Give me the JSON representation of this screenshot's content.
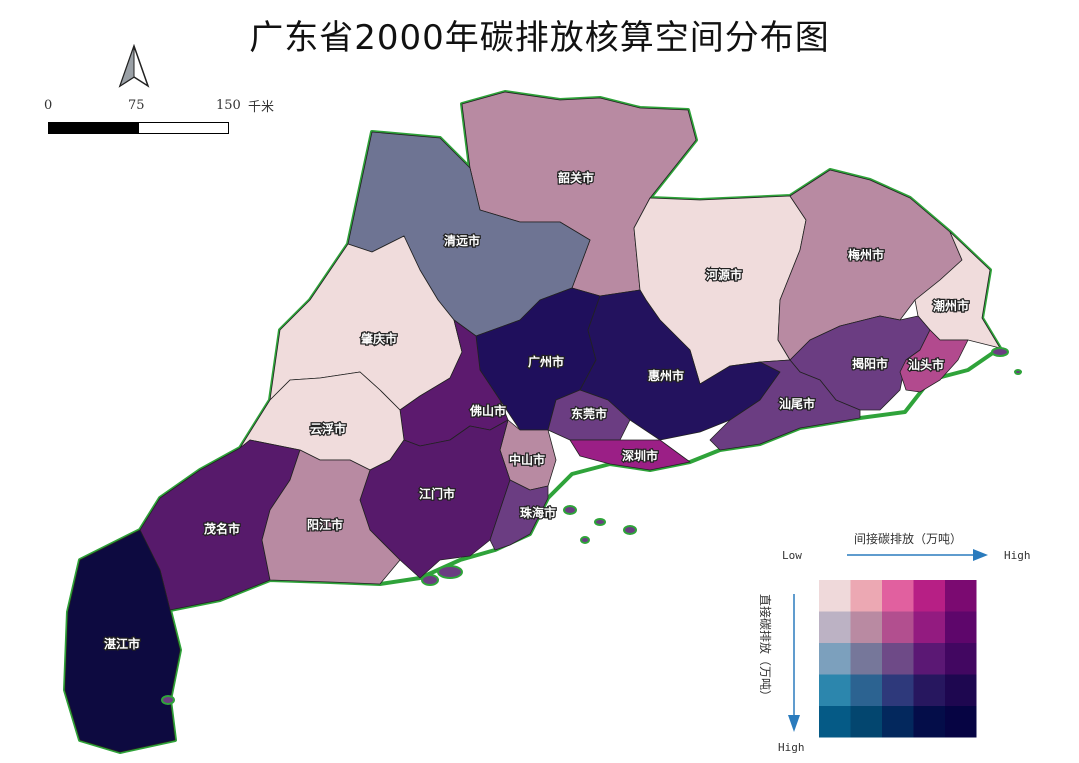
{
  "title": "广东省2000年碳排放核算空间分布图",
  "scale_bar": {
    "ticks": [
      "0",
      "75",
      "150"
    ],
    "unit": "千米"
  },
  "cities": [
    {
      "name": "韶关市",
      "color": "#b88aa2"
    },
    {
      "name": "清远市",
      "color": "#6e7493"
    },
    {
      "name": "河源市",
      "color": "#f0dcdc"
    },
    {
      "name": "梅州市",
      "color": "#b88aa2"
    },
    {
      "name": "潮州市",
      "color": "#f0dcdc"
    },
    {
      "name": "肇庆市",
      "color": "#f0dcdc"
    },
    {
      "name": "广州市",
      "color": "#1f0f5c"
    },
    {
      "name": "惠州市",
      "color": "#23125e"
    },
    {
      "name": "揭阳市",
      "color": "#6b3d82"
    },
    {
      "name": "汕头市",
      "color": "#b24a8e"
    },
    {
      "name": "佛山市",
      "color": "#5c1a6e"
    },
    {
      "name": "汕尾市",
      "color": "#6b3d82"
    },
    {
      "name": "云浮市",
      "color": "#f0dcdc"
    },
    {
      "name": "东莞市",
      "color": "#6b3d82"
    },
    {
      "name": "深圳市",
      "color": "#9b1f86"
    },
    {
      "name": "中山市",
      "color": "#b88aa2"
    },
    {
      "name": "江门市",
      "color": "#571a6b"
    },
    {
      "name": "珠海市",
      "color": "#6b3d82"
    },
    {
      "name": "茂名市",
      "color": "#571a6b"
    },
    {
      "name": "阳江市",
      "color": "#b88aa2"
    },
    {
      "name": "湛江市",
      "color": "#0d0a40"
    }
  ],
  "legend": {
    "x_title": "间接碳排放（万吨）",
    "y_title": "直接碳排放（万吨）",
    "x_low": "Low",
    "x_high": "High",
    "y_high": "High",
    "grid": [
      [
        "#efd9da",
        "#eca8b3",
        "#e1609f",
        "#b71f85",
        "#7b0a71"
      ],
      [
        "#bcb2c4",
        "#b98aa2",
        "#b24f8f",
        "#931b80",
        "#5e066b"
      ],
      [
        "#7ca0bd",
        "#76779a",
        "#6e4a87",
        "#5b1874",
        "#420761"
      ],
      [
        "#2c86ad",
        "#2c6391",
        "#2e397b",
        "#27175f",
        "#1e0750"
      ],
      [
        "#055a86",
        "#03466f",
        "#03285d",
        "#040d49",
        "#060443"
      ]
    ],
    "arrow_color": "#2a7bbd"
  }
}
